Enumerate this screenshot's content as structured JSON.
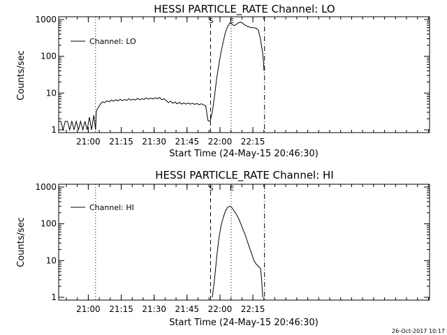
{
  "figure": {
    "timestamp": "26-Oct-2017 10:17"
  },
  "chart_data": [
    {
      "type": "line",
      "title": "HESSI PARTICLE_RATE Channel: LO",
      "xlabel": "Start Time (24-May-15 20:46:30)",
      "ylabel": "Counts/sec",
      "yscale": "log",
      "ylim": [
        1,
        1000
      ],
      "xlim_min": [
        0,
        169
      ],
      "xticks_min": [
        13.5,
        28.5,
        43.5,
        58.5,
        73.5,
        88.5
      ],
      "xtick_labels": [
        "21:00",
        "21:15",
        "21:30",
        "21:45",
        "22:00",
        "22:15"
      ],
      "ytick_labels": [
        "1",
        "10",
        "100",
        "1000"
      ],
      "grid": false,
      "legend": {
        "position": "top-left",
        "label": "Channel: LO"
      },
      "markers": [
        {
          "label": "",
          "x_min": 16.8,
          "style": "dotted"
        },
        {
          "label": "S",
          "x_min": 69.2,
          "style": "dashed"
        },
        {
          "label": "E",
          "x_min": 78.6,
          "style": "dotted"
        },
        {
          "label": "",
          "x_min": 93.8,
          "style": "dashdot"
        }
      ],
      "series": [
        {
          "name": "Channel: LO",
          "points": [
            [
              0,
              1.7
            ],
            [
              1,
              1.7
            ],
            [
              2,
              1
            ],
            [
              3,
              1.7
            ],
            [
              4,
              1.7
            ],
            [
              5,
              1
            ],
            [
              6,
              1.7
            ],
            [
              7,
              1
            ],
            [
              8,
              1.7
            ],
            [
              9,
              1
            ],
            [
              10,
              1.7
            ],
            [
              11,
              1
            ],
            [
              12,
              1.7
            ],
            [
              13,
              1
            ],
            [
              14,
              2.2
            ],
            [
              15,
              1
            ],
            [
              16,
              2.5
            ],
            [
              16.8,
              1
            ],
            [
              17.2,
              3.2
            ],
            [
              18,
              4
            ],
            [
              19,
              5
            ],
            [
              20,
              5.8
            ],
            [
              21,
              5.5
            ],
            [
              22,
              6.2
            ],
            [
              23,
              5.8
            ],
            [
              24,
              6.5
            ],
            [
              25,
              6
            ],
            [
              26,
              6.6
            ],
            [
              27,
              6.1
            ],
            [
              28,
              6.8
            ],
            [
              29,
              6.2
            ],
            [
              30,
              6.7
            ],
            [
              31,
              6.3
            ],
            [
              32,
              7
            ],
            [
              33,
              6.4
            ],
            [
              34,
              6.8
            ],
            [
              35,
              6.5
            ],
            [
              36,
              7.2
            ],
            [
              37,
              6.6
            ],
            [
              38,
              7
            ],
            [
              39,
              6.7
            ],
            [
              40,
              7.4
            ],
            [
              41,
              6.8
            ],
            [
              42,
              7.3
            ],
            [
              43,
              6.9
            ],
            [
              44,
              7.5
            ],
            [
              45,
              7
            ],
            [
              46,
              7.6
            ],
            [
              47,
              6.6
            ],
            [
              48,
              7
            ],
            [
              49,
              6.2
            ],
            [
              50,
              5.5
            ],
            [
              51,
              6
            ],
            [
              52,
              5.3
            ],
            [
              53,
              5.7
            ],
            [
              54,
              5.1
            ],
            [
              55,
              5.6
            ],
            [
              56,
              5
            ],
            [
              57,
              5.4
            ],
            [
              58,
              5
            ],
            [
              59,
              5.4
            ],
            [
              60,
              5
            ],
            [
              61,
              5.3
            ],
            [
              62,
              4.9
            ],
            [
              63,
              5.2
            ],
            [
              64,
              4.8
            ],
            [
              65,
              5.1
            ],
            [
              66,
              4.8
            ],
            [
              67,
              4.5
            ],
            [
              68,
              1.8
            ],
            [
              69,
              1.7
            ],
            [
              70,
              3
            ],
            [
              71,
              8
            ],
            [
              72,
              25
            ],
            [
              73,
              60
            ],
            [
              74,
              130
            ],
            [
              75,
              250
            ],
            [
              76,
              450
            ],
            [
              77,
              650
            ],
            [
              78,
              800
            ],
            [
              78.6,
              780
            ],
            [
              79,
              750
            ],
            [
              80,
              680
            ],
            [
              81,
              740
            ],
            [
              82,
              820
            ],
            [
              83,
              850
            ],
            [
              84,
              780
            ],
            [
              85,
              700
            ],
            [
              86,
              660
            ],
            [
              87,
              620
            ],
            [
              88,
              600
            ],
            [
              89,
              600
            ],
            [
              90,
              580
            ],
            [
              91,
              520
            ],
            [
              92,
              280
            ],
            [
              93,
              120
            ],
            [
              93.6,
              40
            ]
          ]
        }
      ]
    },
    {
      "type": "line",
      "title": "HESSI PARTICLE_RATE Channel: HI",
      "xlabel": "Start Time (24-May-15 20:46:30)",
      "ylabel": "Counts/sec",
      "yscale": "log",
      "ylim": [
        1,
        1000
      ],
      "xlim_min": [
        0,
        169
      ],
      "xticks_min": [
        13.5,
        28.5,
        43.5,
        58.5,
        73.5,
        88.5
      ],
      "xtick_labels": [
        "21:00",
        "21:15",
        "21:30",
        "21:45",
        "22:00",
        "22:15"
      ],
      "ytick_labels": [
        "1",
        "10",
        "100",
        "1000"
      ],
      "grid": false,
      "legend": {
        "position": "top-left",
        "label": "Channel: HI"
      },
      "markers": [
        {
          "label": "",
          "x_min": 16.8,
          "style": "dotted"
        },
        {
          "label": "S",
          "x_min": 69.2,
          "style": "dashed"
        },
        {
          "label": "E",
          "x_min": 78.6,
          "style": "dotted"
        },
        {
          "label": "",
          "x_min": 93.8,
          "style": "dashdot"
        }
      ],
      "series": [
        {
          "name": "Channel: HI",
          "points": [
            [
              70,
              1
            ],
            [
              71,
              3
            ],
            [
              72,
              12
            ],
            [
              73,
              40
            ],
            [
              74,
              90
            ],
            [
              75,
              150
            ],
            [
              76,
              220
            ],
            [
              77,
              280
            ],
            [
              78,
              300
            ],
            [
              78.6,
              290
            ],
            [
              79,
              270
            ],
            [
              80,
              220
            ],
            [
              81,
              180
            ],
            [
              82,
              140
            ],
            [
              83,
              100
            ],
            [
              84,
              70
            ],
            [
              85,
              50
            ],
            [
              86,
              33
            ],
            [
              87,
              22
            ],
            [
              88,
              15
            ],
            [
              89,
              10
            ],
            [
              90,
              8
            ],
            [
              91,
              7
            ],
            [
              92,
              6
            ],
            [
              92.5,
              3
            ],
            [
              93,
              1
            ]
          ]
        }
      ]
    }
  ]
}
